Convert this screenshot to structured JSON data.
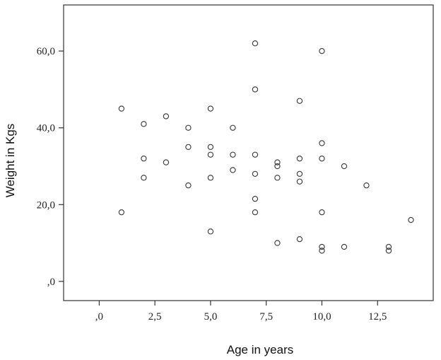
{
  "chart_data": {
    "type": "scatter",
    "title": "",
    "xlabel": "Age in years",
    "ylabel": "Weight in Kgs",
    "xlim": [
      -1.6,
      15.0
    ],
    "ylim": [
      -5,
      72
    ],
    "xticks": [
      0,
      2.5,
      5.0,
      7.5,
      10.0,
      12.5
    ],
    "xtick_labels": [
      ",0",
      "2,5",
      "5,0",
      "7,5",
      "10,0",
      "12,5"
    ],
    "yticks": [
      0,
      20,
      40,
      60
    ],
    "ytick_labels": [
      ",0",
      "20,0",
      "40,0",
      "60,0"
    ],
    "grid": false,
    "marker": "open-circle",
    "colors": {
      "marker": "#333333",
      "axis": "#333333",
      "background": "#ffffff"
    },
    "points": [
      {
        "x": 1,
        "y": 45
      },
      {
        "x": 1,
        "y": 18
      },
      {
        "x": 2,
        "y": 41
      },
      {
        "x": 2,
        "y": 32
      },
      {
        "x": 2,
        "y": 27
      },
      {
        "x": 3,
        "y": 43
      },
      {
        "x": 3,
        "y": 31
      },
      {
        "x": 4,
        "y": 40
      },
      {
        "x": 4,
        "y": 35
      },
      {
        "x": 4,
        "y": 25
      },
      {
        "x": 5,
        "y": 45
      },
      {
        "x": 5,
        "y": 35
      },
      {
        "x": 5,
        "y": 33
      },
      {
        "x": 5,
        "y": 27
      },
      {
        "x": 5,
        "y": 13
      },
      {
        "x": 6,
        "y": 40
      },
      {
        "x": 6,
        "y": 33
      },
      {
        "x": 6,
        "y": 29
      },
      {
        "x": 7,
        "y": 62
      },
      {
        "x": 7,
        "y": 50
      },
      {
        "x": 7,
        "y": 33
      },
      {
        "x": 7,
        "y": 28
      },
      {
        "x": 7,
        "y": 21.5
      },
      {
        "x": 7,
        "y": 18
      },
      {
        "x": 8,
        "y": 31
      },
      {
        "x": 8,
        "y": 30
      },
      {
        "x": 8,
        "y": 27
      },
      {
        "x": 8,
        "y": 10
      },
      {
        "x": 9,
        "y": 47
      },
      {
        "x": 9,
        "y": 32
      },
      {
        "x": 9,
        "y": 28
      },
      {
        "x": 9,
        "y": 26
      },
      {
        "x": 9,
        "y": 11
      },
      {
        "x": 10,
        "y": 60
      },
      {
        "x": 10,
        "y": 36
      },
      {
        "x": 10,
        "y": 32
      },
      {
        "x": 10,
        "y": 18
      },
      {
        "x": 10,
        "y": 9
      },
      {
        "x": 10,
        "y": 8
      },
      {
        "x": 11,
        "y": 30
      },
      {
        "x": 11,
        "y": 9
      },
      {
        "x": 12,
        "y": 25
      },
      {
        "x": 13,
        "y": 9
      },
      {
        "x": 13,
        "y": 8
      },
      {
        "x": 14,
        "y": 16
      }
    ]
  }
}
